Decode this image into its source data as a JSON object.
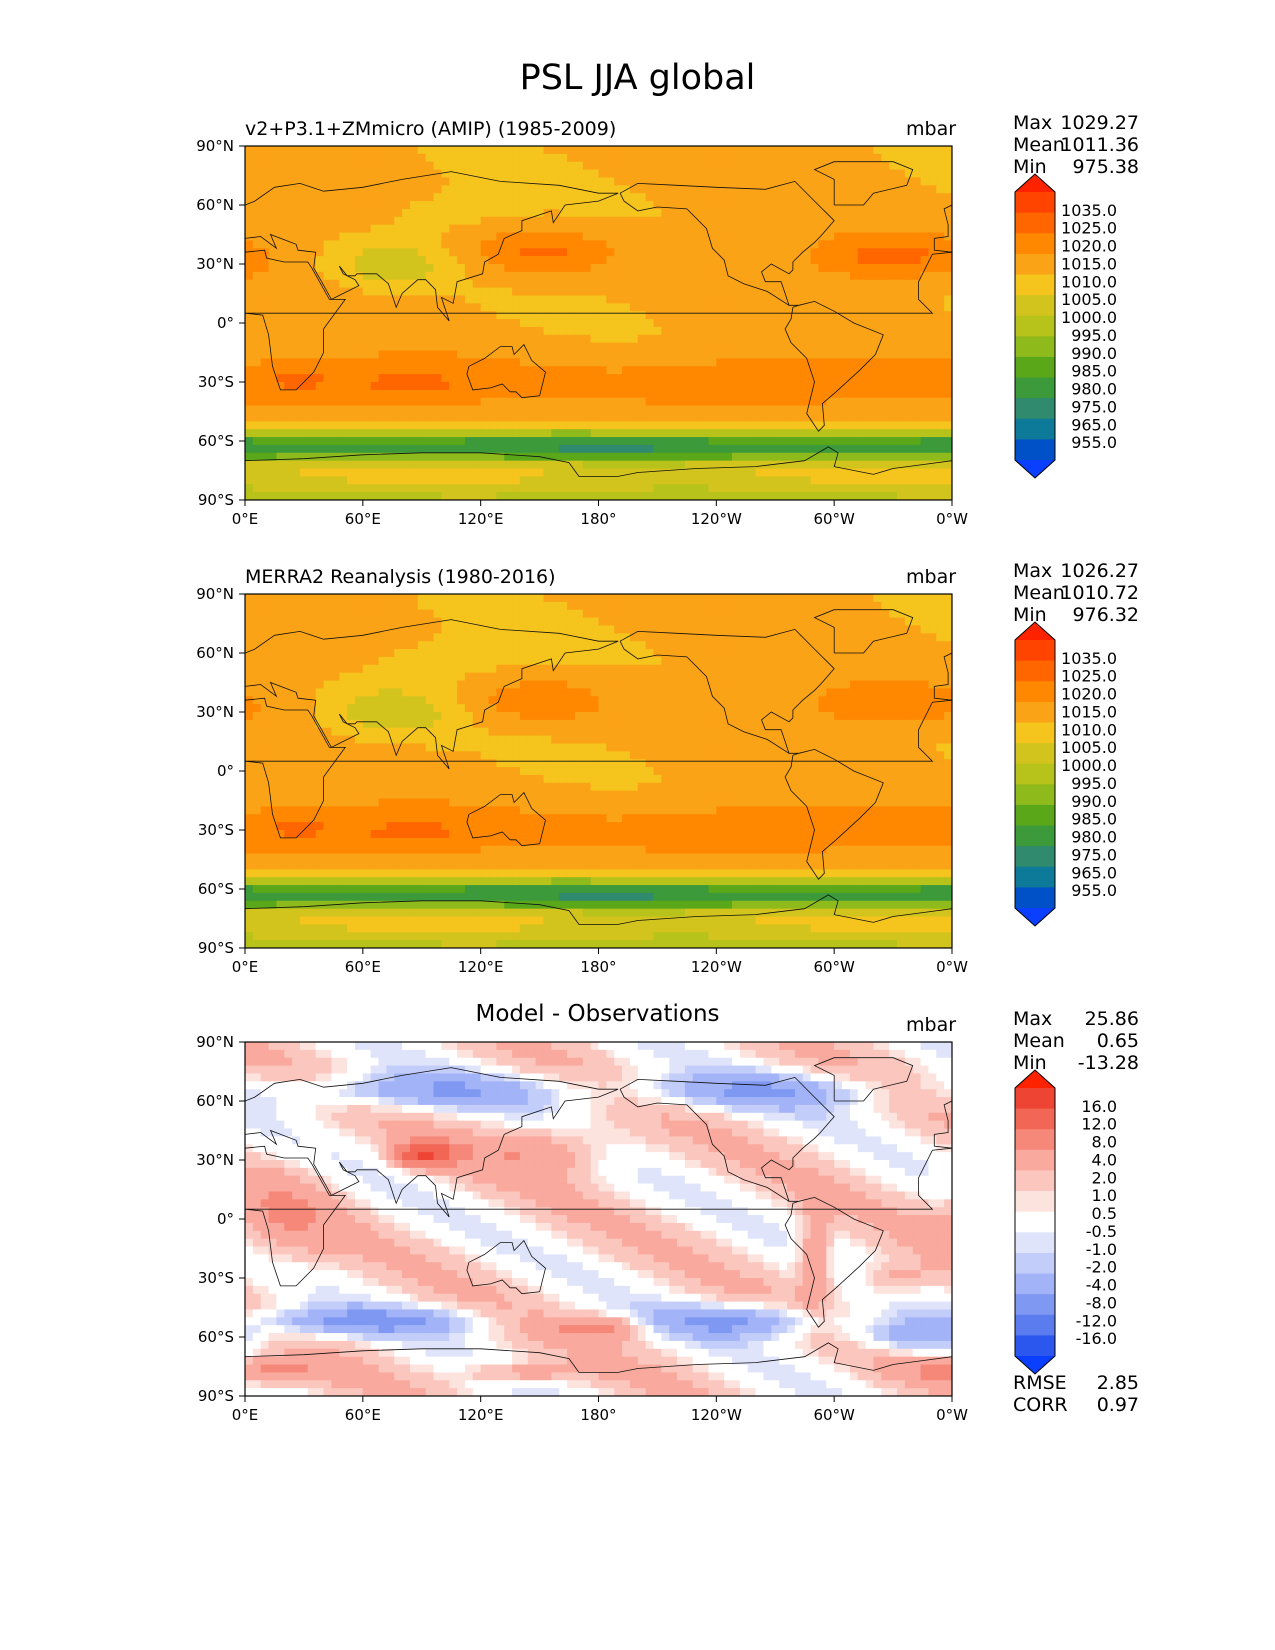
{
  "figure": {
    "title": "PSL JJA global"
  },
  "chart_data": [
    {
      "type": "heatmap",
      "title": "v2+P3.1+ZMmicro (AMIP) (1985-2009)",
      "units": "mbar",
      "xticks": [
        "0°E",
        "60°E",
        "120°E",
        "180°",
        "120°W",
        "60°W",
        "0°W"
      ],
      "yticks": [
        "90°N",
        "60°N",
        "30°N",
        "0°",
        "30°S",
        "60°S",
        "90°S"
      ],
      "xlim": [
        0,
        360
      ],
      "ylim": [
        -90,
        90
      ],
      "stats": [
        {
          "label": "Max",
          "value": "1029.27"
        },
        {
          "label": "Mean",
          "value": "1011.36"
        },
        {
          "label": "Min",
          "value": "975.38"
        }
      ],
      "colorbar": {
        "levels": [
          "1035.0",
          "1025.0",
          "1020.0",
          "1015.0",
          "1010.0",
          "1005.0",
          "1000.0",
          "995.0",
          "990.0",
          "985.0",
          "980.0",
          "975.0",
          "965.0",
          "955.0"
        ],
        "colors": [
          "#ff2200",
          "#ff4400",
          "#ff6600",
          "#ff8800",
          "#fba316",
          "#f5c41d",
          "#d2c41d",
          "#b7c21b",
          "#8fba1b",
          "#5aa819",
          "#3d9a3a",
          "#2f8a6e",
          "#0c7a98",
          "#0050c8",
          "#0a3fff"
        ]
      },
      "field": "psl_model"
    },
    {
      "type": "heatmap",
      "title": "MERRA2 Reanalysis (1980-2016)",
      "units": "mbar",
      "xticks": [
        "0°E",
        "60°E",
        "120°E",
        "180°",
        "120°W",
        "60°W",
        "0°W"
      ],
      "yticks": [
        "90°N",
        "60°N",
        "30°N",
        "0°",
        "30°S",
        "60°S",
        "90°S"
      ],
      "xlim": [
        0,
        360
      ],
      "ylim": [
        -90,
        90
      ],
      "stats": [
        {
          "label": "Max",
          "value": "1026.27"
        },
        {
          "label": "Mean",
          "value": "1010.72"
        },
        {
          "label": "Min",
          "value": "976.32"
        }
      ],
      "colorbar": {
        "levels": [
          "1035.0",
          "1025.0",
          "1020.0",
          "1015.0",
          "1010.0",
          "1005.0",
          "1000.0",
          "995.0",
          "990.0",
          "985.0",
          "980.0",
          "975.0",
          "965.0",
          "955.0"
        ],
        "colors": [
          "#ff2200",
          "#ff4400",
          "#ff6600",
          "#ff8800",
          "#fba316",
          "#f5c41d",
          "#d2c41d",
          "#b7c21b",
          "#8fba1b",
          "#5aa819",
          "#3d9a3a",
          "#2f8a6e",
          "#0c7a98",
          "#0050c8",
          "#0a3fff"
        ]
      },
      "field": "psl_obs"
    },
    {
      "type": "heatmap",
      "title": "Model - Observations",
      "units": "mbar",
      "xticks": [
        "0°E",
        "60°E",
        "120°E",
        "180°",
        "120°W",
        "60°W",
        "0°W"
      ],
      "yticks": [
        "90°N",
        "60°N",
        "30°N",
        "0°",
        "30°S",
        "60°S",
        "90°S"
      ],
      "xlim": [
        0,
        360
      ],
      "ylim": [
        -90,
        90
      ],
      "stats": [
        {
          "label": "Max",
          "value": "25.86"
        },
        {
          "label": "Mean",
          "value": "0.65"
        },
        {
          "label": "Min",
          "value": "-13.28"
        }
      ],
      "extra_stats": [
        {
          "label": "RMSE",
          "value": "2.85"
        },
        {
          "label": "CORR",
          "value": "0.97"
        }
      ],
      "colorbar": {
        "levels": [
          "16.0",
          "12.0",
          "8.0",
          "4.0",
          "2.0",
          "1.0",
          "0.5",
          "-0.5",
          "-1.0",
          "-2.0",
          "-4.0",
          "-8.0",
          "-12.0",
          "-16.0"
        ],
        "colors": [
          "#ff2200",
          "#ee4433",
          "#f26655",
          "#f6887a",
          "#f9a99d",
          "#fbc6bd",
          "#fde3de",
          "#ffffff",
          "#dfe4fb",
          "#c2cdfa",
          "#a3b3f7",
          "#7f98f2",
          "#5a7cee",
          "#2c57ef",
          "#0a3fff"
        ]
      },
      "field": "psl_diff"
    }
  ]
}
